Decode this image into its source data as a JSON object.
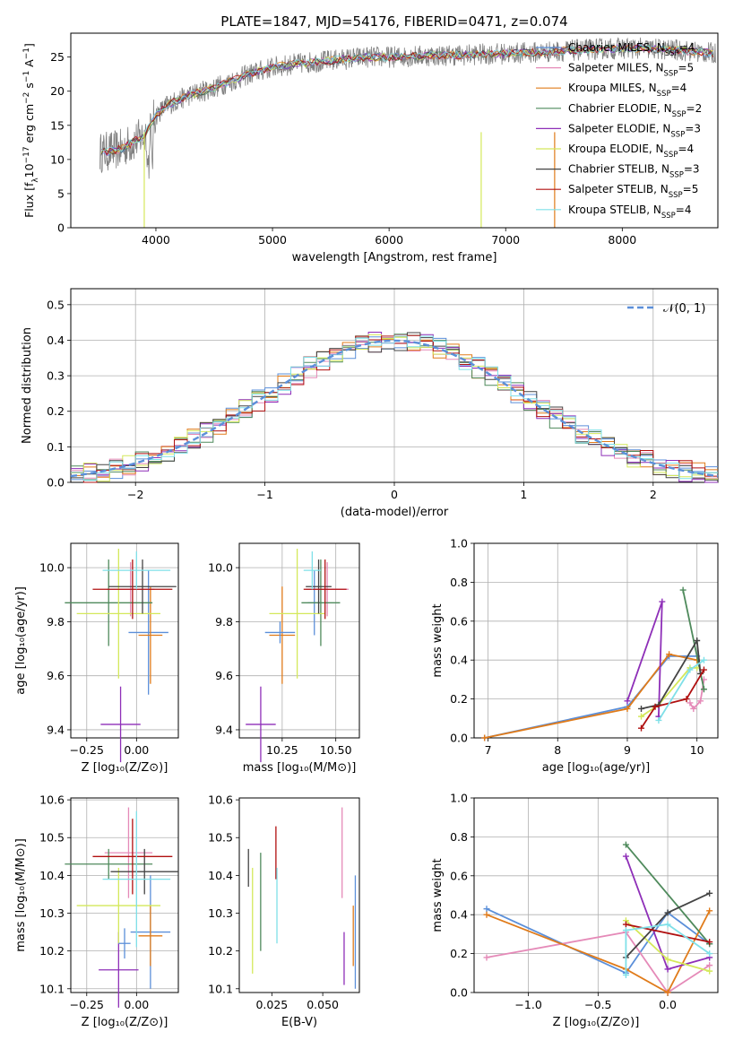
{
  "figure_title": "PLATE=1847, MJD=54176, FIBERID=0471, z=0.074",
  "colors": {
    "chabrier_miles": "#5b8fd9",
    "salpeter_miles": "#e58ab8",
    "kroupa_miles": "#e07b1a",
    "chabrier_elodie": "#4f8a5c",
    "salpeter_elodie": "#8e2fb8",
    "kroupa_elodie": "#d4e85a",
    "chabrier_stelib": "#444444",
    "salpeter_stelib": "#b01010",
    "kroupa_stelib": "#7fe0e8",
    "data": "#808080",
    "grid": "#b0b0b0"
  },
  "chart_data": [
    {
      "id": "spectrum",
      "type": "line",
      "xlabel": "wavelength [Angstrom, rest frame]",
      "ylabel": "Flux [f_λ10^{-17} erg cm^{-2} s^{-1} A^{-1}]",
      "xlim": [
        3270,
        8820
      ],
      "ylim": [
        0,
        28.5
      ],
      "xticks": [
        4000,
        5000,
        6000,
        7000,
        8000
      ],
      "yticks": [
        0,
        5,
        10,
        15,
        20,
        25
      ],
      "grid": false,
      "legend_position": "right",
      "legend": [
        {
          "label": "Chabrier MILES, N",
          "sub": "SSP",
          "suffix": "=4",
          "color_key": "chabrier_miles"
        },
        {
          "label": "Salpeter MILES, N",
          "sub": "SSP",
          "suffix": "=5",
          "color_key": "salpeter_miles"
        },
        {
          "label": "Kroupa MILES, N",
          "sub": "SSP",
          "suffix": "=4",
          "color_key": "kroupa_miles"
        },
        {
          "label": "Chabrier ELODIE, N",
          "sub": "SSP",
          "suffix": "=2",
          "color_key": "chabrier_elodie"
        },
        {
          "label": "Salpeter ELODIE, N",
          "sub": "SSP",
          "suffix": "=3",
          "color_key": "salpeter_elodie"
        },
        {
          "label": "Kroupa ELODIE, N",
          "sub": "SSP",
          "suffix": "=4",
          "color_key": "kroupa_elodie"
        },
        {
          "label": "Chabrier STELIB, N",
          "sub": "SSP",
          "suffix": "=3",
          "color_key": "chabrier_stelib"
        },
        {
          "label": "Salpeter STELIB, N",
          "sub": "SSP",
          "suffix": "=5",
          "color_key": "salpeter_stelib"
        },
        {
          "label": "Kroupa STELIB, N",
          "sub": "SSP",
          "suffix": "=4",
          "color_key": "kroupa_stelib"
        }
      ],
      "continuum": {
        "x": [
          3520,
          3700,
          3900,
          3950,
          4000,
          4100,
          4300,
          4500,
          4800,
          5000,
          5200,
          5500,
          5800,
          6000,
          6300,
          6600,
          7000,
          7400,
          7600,
          7800,
          8100,
          8500,
          8800
        ],
        "y": [
          11,
          11.5,
          13.5,
          15,
          16.5,
          18,
          19.5,
          20.5,
          22.5,
          23.5,
          24,
          24.5,
          25,
          25,
          25.2,
          25.3,
          25.5,
          25.8,
          26,
          26.2,
          26.3,
          26,
          25.5
        ]
      }
    },
    {
      "id": "residuals",
      "type": "line",
      "xlabel": "(data-model)/error",
      "ylabel": "Normed distribution",
      "xlim": [
        -2.5,
        2.5
      ],
      "ylim": [
        0,
        0.545
      ],
      "xticks": [
        -2,
        -1,
        0,
        1,
        2
      ],
      "xtick_labels": [
        "−2",
        "−1",
        "0",
        "1",
        "2"
      ],
      "yticks": [
        0.0,
        0.1,
        0.2,
        0.3,
        0.4,
        0.5
      ],
      "grid": true,
      "legend_position": "top-right",
      "reference_label": "𝒩(0, 1)",
      "reference": {
        "mu": 0,
        "sigma": 1
      },
      "bin_width": 0.1
    },
    {
      "id": "age-vs-Z",
      "type": "scatter",
      "xlabel": "Z [log₁₀(Z/Z⊙)]",
      "ylabel": "age  [log₁₀(age/yr)]",
      "xlim": [
        -0.33,
        0.21
      ],
      "ylim": [
        9.37,
        10.09
      ],
      "xticks": [
        -0.25,
        0.0
      ],
      "xtick_labels": [
        "−0.25",
        "0.00"
      ],
      "yticks": [
        9.4,
        9.6,
        9.8,
        10.0
      ],
      "grid": true,
      "points": [
        {
          "k": "chabrier_miles",
          "x": 0.06,
          "xerr": 0.1,
          "y": 9.76,
          "yerr": 0.23
        },
        {
          "k": "salpeter_miles",
          "x": -0.03,
          "xerr": 0.12,
          "y": 9.92,
          "yerr": 0.1
        },
        {
          "k": "kroupa_miles",
          "x": 0.07,
          "xerr": 0.06,
          "y": 9.75,
          "yerr": 0.18
        },
        {
          "k": "chabrier_elodie",
          "x": -0.14,
          "xerr": 0.22,
          "y": 9.87,
          "yerr": 0.16
        },
        {
          "k": "salpeter_elodie",
          "x": -0.08,
          "xerr": 0.1,
          "y": 9.42,
          "yerr": 0.14
        },
        {
          "k": "kroupa_elodie",
          "x": -0.09,
          "xerr": 0.21,
          "y": 9.83,
          "yerr": 0.24
        },
        {
          "k": "chabrier_stelib",
          "x": 0.03,
          "xerr": 0.17,
          "y": 9.93,
          "yerr": 0.1
        },
        {
          "k": "salpeter_stelib",
          "x": -0.02,
          "xerr": 0.2,
          "y": 9.92,
          "yerr": 0.11
        },
        {
          "k": "kroupa_stelib",
          "x": 0.0,
          "xerr": 0.17,
          "y": 9.99,
          "yerr": 0.07
        }
      ]
    },
    {
      "id": "age-vs-mass",
      "type": "scatter",
      "xlabel": "mass [log₁₀(M/M⊙)]",
      "ylabel": "",
      "xlim": [
        10.05,
        10.61
      ],
      "ylim": [
        9.37,
        10.09
      ],
      "xticks": [
        10.25,
        10.5
      ],
      "xtick_labels": [
        "10.25",
        "10.50"
      ],
      "yticks": [
        9.4,
        9.6,
        9.8,
        10.0
      ],
      "grid": true,
      "points": [
        {
          "k": "chabrier_miles",
          "x": 10.4,
          "xerr": 0.03,
          "y": 9.87,
          "yerr": 0.12
        },
        {
          "k": "salpeter_miles",
          "x": 10.46,
          "xerr": 0.1,
          "y": 9.92,
          "yerr": 0.1
        },
        {
          "k": "kroupa_miles",
          "x": 10.25,
          "xerr": 0.06,
          "y": 9.75,
          "yerr": 0.18
        },
        {
          "k": "chabrier_elodie",
          "x": 10.43,
          "xerr": 0.09,
          "y": 9.87,
          "yerr": 0.16
        },
        {
          "k": "salpeter_elodie",
          "x": 10.15,
          "xerr": 0.07,
          "y": 9.42,
          "yerr": 0.14
        },
        {
          "k": "kroupa_elodie",
          "x": 10.32,
          "xerr": 0.13,
          "y": 9.83,
          "yerr": 0.24
        },
        {
          "k": "chabrier_stelib",
          "x": 10.42,
          "xerr": 0.06,
          "y": 9.93,
          "yerr": 0.1
        },
        {
          "k": "salpeter_stelib",
          "x": 10.45,
          "xerr": 0.1,
          "y": 9.92,
          "yerr": 0.11
        },
        {
          "k": "kroupa_stelib",
          "x": 10.39,
          "xerr": 0.04,
          "y": 9.99,
          "yerr": 0.07
        },
        {
          "k": "chabrier_miles",
          "x": 10.24,
          "xerr": 0.07,
          "y": 9.76,
          "yerr": 0.04
        }
      ]
    },
    {
      "id": "weight-vs-age",
      "type": "line",
      "xlabel": "age  [log₁₀(age/yr)]",
      "ylabel": "mass weight",
      "xlim": [
        6.8,
        10.3
      ],
      "ylim": [
        0,
        1.0
      ],
      "xticks": [
        7,
        8,
        9,
        10
      ],
      "yticks": [
        0.0,
        0.2,
        0.4,
        0.6,
        0.8,
        1.0
      ],
      "grid": true,
      "series": [
        {
          "k": "chabrier_miles",
          "points": [
            [
              6.95,
              0.0
            ],
            [
              9.0,
              0.16
            ],
            [
              9.6,
              0.42
            ],
            [
              10.0,
              0.42
            ]
          ]
        },
        {
          "k": "salpeter_miles",
          "points": [
            [
              9.9,
              0.18
            ],
            [
              9.95,
              0.15
            ],
            [
              10.05,
              0.19
            ],
            [
              10.1,
              0.3
            ]
          ]
        },
        {
          "k": "kroupa_miles",
          "points": [
            [
              6.95,
              0.0
            ],
            [
              9.0,
              0.15
            ],
            [
              9.6,
              0.43
            ],
            [
              10.0,
              0.4
            ]
          ]
        },
        {
          "k": "chabrier_elodie",
          "points": [
            [
              9.8,
              0.76
            ],
            [
              10.1,
              0.25
            ]
          ]
        },
        {
          "k": "salpeter_elodie",
          "points": [
            [
              9.0,
              0.19
            ],
            [
              9.5,
              0.7
            ],
            [
              9.45,
              0.11
            ]
          ]
        },
        {
          "k": "kroupa_elodie",
          "points": [
            [
              9.2,
              0.11
            ],
            [
              9.45,
              0.17
            ],
            [
              9.9,
              0.36
            ],
            [
              10.0,
              0.36
            ]
          ]
        },
        {
          "k": "chabrier_stelib",
          "points": [
            [
              9.2,
              0.15
            ],
            [
              9.45,
              0.17
            ],
            [
              10.0,
              0.5
            ],
            [
              10.05,
              0.33
            ]
          ]
        },
        {
          "k": "salpeter_stelib",
          "points": [
            [
              9.2,
              0.05
            ],
            [
              9.4,
              0.16
            ],
            [
              9.85,
              0.2
            ],
            [
              10.1,
              0.35
            ]
          ]
        },
        {
          "k": "kroupa_stelib",
          "points": [
            [
              9.45,
              0.09
            ],
            [
              9.9,
              0.35
            ],
            [
              10.1,
              0.4
            ]
          ]
        }
      ]
    },
    {
      "id": "mass-vs-Z",
      "type": "scatter",
      "xlabel": "Z [log₁₀(Z/Z⊙)]",
      "ylabel": "mass [log₁₀(M/M⊙)]",
      "xlim": [
        -0.33,
        0.21
      ],
      "ylim": [
        10.09,
        10.605
      ],
      "xticks": [
        -0.25,
        0.0
      ],
      "xtick_labels": [
        "−0.25",
        "0.00"
      ],
      "yticks": [
        10.1,
        10.2,
        10.3,
        10.4,
        10.5,
        10.6
      ],
      "grid": true,
      "points": [
        {
          "k": "chabrier_miles",
          "x": 0.07,
          "xerr": 0.1,
          "y": 10.25,
          "yerr": 0.15
        },
        {
          "k": "salpeter_miles",
          "x": -0.04,
          "xerr": 0.12,
          "y": 10.46,
          "yerr": 0.12
        },
        {
          "k": "kroupa_miles",
          "x": 0.07,
          "xerr": 0.06,
          "y": 10.24,
          "yerr": 0.08
        },
        {
          "k": "chabrier_elodie",
          "x": -0.14,
          "xerr": 0.22,
          "y": 10.43,
          "yerr": 0.04
        },
        {
          "k": "salpeter_elodie",
          "x": -0.09,
          "xerr": 0.1,
          "y": 10.15,
          "yerr": 0.1
        },
        {
          "k": "kroupa_elodie",
          "x": -0.09,
          "xerr": 0.21,
          "y": 10.32,
          "yerr": 0.1
        },
        {
          "k": "chabrier_stelib",
          "x": 0.04,
          "xerr": 0.17,
          "y": 10.41,
          "yerr": 0.06
        },
        {
          "k": "salpeter_stelib",
          "x": -0.02,
          "xerr": 0.2,
          "y": 10.45,
          "yerr": 0.1
        },
        {
          "k": "kroupa_stelib",
          "x": 0.0,
          "xerr": 0.17,
          "y": 10.39,
          "yerr": 0.18
        },
        {
          "k": "chabrier_miles",
          "x": -0.06,
          "xerr": 0.03,
          "y": 10.22,
          "yerr": 0.04
        }
      ]
    },
    {
      "id": "mass-vs-EBV",
      "type": "scatter",
      "xlabel": "E(B-V)",
      "ylabel": "",
      "xlim": [
        0.009,
        0.068
      ],
      "ylim": [
        10.09,
        10.605
      ],
      "xticks": [
        0.025,
        0.05
      ],
      "xtick_labels": [
        "0.025",
        "0.050"
      ],
      "yticks": [
        10.1,
        10.2,
        10.3,
        10.4,
        10.5,
        10.6
      ],
      "grid": false,
      "points": [
        {
          "k": "chabrier_stelib",
          "x": 0.0135,
          "y": 10.42,
          "yerr": 0.05
        },
        {
          "k": "kroupa_elodie",
          "x": 0.0155,
          "y": 10.28,
          "yerr": 0.14
        },
        {
          "k": "chabrier_elodie",
          "x": 0.0195,
          "y": 10.33,
          "yerr": 0.13
        },
        {
          "k": "salpeter_stelib",
          "x": 0.027,
          "y": 10.46,
          "yerr": 0.07
        },
        {
          "k": "kroupa_stelib",
          "x": 0.0275,
          "y": 10.32,
          "yerr": 0.1
        },
        {
          "k": "salpeter_miles",
          "x": 0.0595,
          "y": 10.46,
          "yerr": 0.12
        },
        {
          "k": "salpeter_elodie",
          "x": 0.0605,
          "y": 10.18,
          "yerr": 0.07
        },
        {
          "k": "kroupa_miles",
          "x": 0.065,
          "y": 10.24,
          "yerr": 0.08
        },
        {
          "k": "chabrier_miles",
          "x": 0.066,
          "y": 10.25,
          "yerr": 0.15
        }
      ]
    },
    {
      "id": "weight-vs-Z",
      "type": "line",
      "xlabel": "Z [log₁₀(Z/Z⊙)]",
      "ylabel": "mass weight",
      "xlim": [
        -1.39,
        0.36
      ],
      "ylim": [
        0,
        1.0
      ],
      "xticks": [
        -1.0,
        -0.5,
        0.0
      ],
      "xtick_labels": [
        "−1.0",
        "−0.5",
        "0.0"
      ],
      "yticks": [
        0.0,
        0.2,
        0.4,
        0.6,
        0.8,
        1.0
      ],
      "grid": true,
      "series": [
        {
          "k": "chabrier_miles",
          "points": [
            [
              -1.3,
              0.43
            ],
            [
              -0.3,
              0.1
            ],
            [
              0.0,
              0.41
            ],
            [
              0.3,
              0.25
            ]
          ]
        },
        {
          "k": "salpeter_miles",
          "points": [
            [
              -1.3,
              0.18
            ],
            [
              -0.3,
              0.31
            ],
            [
              0.0,
              0.0
            ],
            [
              0.3,
              0.14
            ]
          ]
        },
        {
          "k": "kroupa_miles",
          "points": [
            [
              -1.3,
              0.4
            ],
            [
              -0.3,
              0.12
            ],
            [
              0.0,
              0.0
            ],
            [
              0.3,
              0.42
            ]
          ]
        },
        {
          "k": "chabrier_elodie",
          "points": [
            [
              -0.3,
              0.76
            ],
            [
              0.3,
              0.25
            ]
          ]
        },
        {
          "k": "salpeter_elodie",
          "points": [
            [
              -0.3,
              0.7
            ],
            [
              0.0,
              0.12
            ],
            [
              0.3,
              0.18
            ]
          ]
        },
        {
          "k": "kroupa_elodie",
          "points": [
            [
              -0.3,
              0.37
            ],
            [
              0.0,
              0.17
            ],
            [
              0.3,
              0.11
            ]
          ]
        },
        {
          "k": "chabrier_stelib",
          "points": [
            [
              -0.3,
              0.18
            ],
            [
              0.0,
              0.41
            ],
            [
              0.3,
              0.51
            ]
          ]
        },
        {
          "k": "salpeter_stelib",
          "points": [
            [
              -0.3,
              0.35
            ],
            [
              0.3,
              0.26
            ]
          ]
        },
        {
          "k": "kroupa_stelib",
          "points": [
            [
              -0.3,
              0.09
            ],
            [
              -0.3,
              0.32
            ],
            [
              0.0,
              0.35
            ],
            [
              0.3,
              0.2
            ]
          ]
        }
      ]
    }
  ]
}
